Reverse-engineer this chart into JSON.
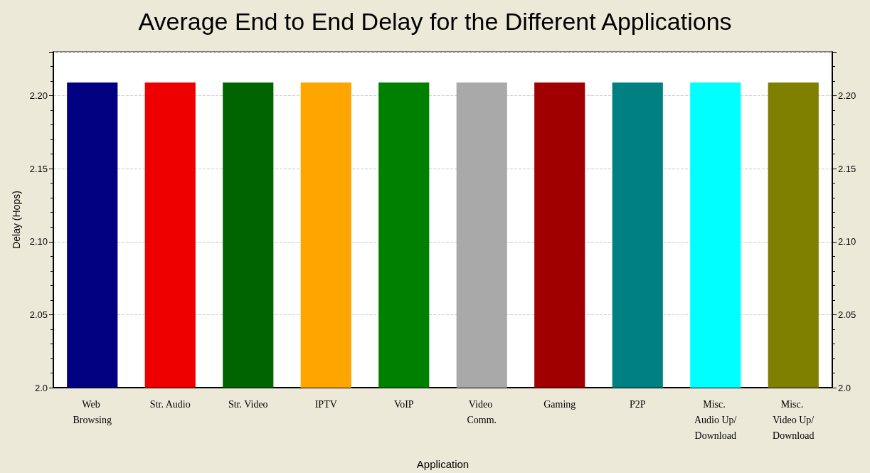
{
  "chart_data": {
    "type": "bar",
    "title": "Average End to End Delay for the Different Applications",
    "xlabel": "Application",
    "ylabel": "Delay (Hops)",
    "categories": [
      "Web Browsing",
      "Str. Audio",
      "Str. Video",
      "IPTV",
      "VoIP",
      "Video Comm.",
      "Gaming",
      "P2P",
      "Misc. Audio Up/Download",
      "Misc. Video Up/Download"
    ],
    "values": [
      2.209,
      2.209,
      2.209,
      2.209,
      2.209,
      2.209,
      2.209,
      2.209,
      2.209,
      2.209
    ],
    "colors": [
      "#000080",
      "#ee0000",
      "#006400",
      "#ffa500",
      "#008000",
      "#a9a9a9",
      "#a00000",
      "#008080",
      "#00ffff",
      "#808000"
    ],
    "ylim": [
      2.0,
      2.23
    ],
    "yticks": [
      {
        "value": 2.0,
        "label": "2.0"
      },
      2.05,
      {
        "value": 2.1,
        "label": "2.10"
      },
      2.15,
      {
        "value": 2.2,
        "label": "2.20"
      }
    ],
    "y2lim": [
      2.0,
      2.23
    ],
    "y2ticks": [
      {
        "value": 2.0,
        "label": "2.0"
      },
      2.05,
      {
        "value": 2.1,
        "label": "2.10"
      },
      2.15,
      {
        "value": 2.2,
        "label": "2.20"
      }
    ],
    "grid": "y"
  }
}
